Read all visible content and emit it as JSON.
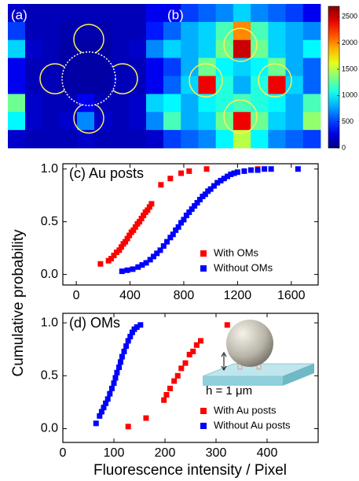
{
  "chart_data": [
    {
      "type": "heatmap",
      "title": "(a)",
      "values": [
        [
          200,
          150,
          150,
          150,
          150,
          150,
          150,
          150,
          300
        ],
        [
          500,
          150,
          150,
          120,
          120,
          120,
          150,
          150,
          400
        ],
        [
          900,
          200,
          150,
          100,
          100,
          100,
          150,
          200,
          700
        ],
        [
          300,
          150,
          150,
          100,
          100,
          100,
          150,
          150,
          300
        ],
        [
          300,
          150,
          150,
          100,
          100,
          100,
          150,
          150,
          300
        ],
        [
          1300,
          200,
          150,
          150,
          300,
          150,
          150,
          200,
          900
        ],
        [
          1000,
          200,
          150,
          200,
          700,
          200,
          150,
          200,
          700
        ],
        [
          200,
          150,
          150,
          150,
          200,
          150,
          150,
          150,
          200
        ]
      ],
      "clim": [
        0,
        2700
      ]
    },
    {
      "type": "heatmap",
      "title": "(b)",
      "values": [
        [
          300,
          500,
          600,
          700,
          900,
          700,
          600,
          500,
          300
        ],
        [
          600,
          800,
          900,
          1200,
          2000,
          1200,
          900,
          800,
          700
        ],
        [
          900,
          800,
          900,
          1300,
          2500,
          1300,
          900,
          800,
          1000
        ],
        [
          500,
          800,
          1300,
          1000,
          900,
          1000,
          1300,
          800,
          600
        ],
        [
          600,
          900,
          2400,
          1100,
          800,
          1100,
          2400,
          900,
          600
        ],
        [
          1000,
          800,
          1000,
          1100,
          1200,
          1100,
          1000,
          800,
          1200
        ],
        [
          1200,
          800,
          900,
          1300,
          2400,
          1300,
          900,
          800,
          1400
        ],
        [
          500,
          600,
          700,
          1000,
          1500,
          1000,
          700,
          600,
          500
        ]
      ],
      "clim": [
        0,
        2700
      ],
      "colorbar_ticks": [
        0,
        500,
        1000,
        1500,
        2000,
        2500
      ]
    },
    {
      "type": "scatter",
      "title": "(c) Au posts",
      "ylabel": "Cumulative probability",
      "legend": "lower right",
      "xlim": [
        -100,
        1800
      ],
      "xticks": [
        0,
        400,
        800,
        1200,
        1600
      ],
      "ylim": [
        -0.1,
        1.05
      ],
      "yticks": [
        {
          "value": 0,
          "label": "0.0"
        },
        {
          "value": 0.5,
          "label": "0.5"
        },
        {
          "value": 1,
          "label": "1.0"
        }
      ],
      "series": [
        {
          "name": "With OMs",
          "color": "#ff0000",
          "x": [
            180,
            240,
            260,
            280,
            300,
            320,
            335,
            350,
            365,
            380,
            395,
            410,
            425,
            440,
            455,
            470,
            485,
            500,
            515,
            530,
            545,
            560,
            630,
            700,
            780,
            840,
            970,
            1350
          ],
          "values": [
            0.1,
            0.13,
            0.15,
            0.18,
            0.21,
            0.23,
            0.26,
            0.29,
            0.31,
            0.34,
            0.37,
            0.4,
            0.42,
            0.45,
            0.48,
            0.5,
            0.53,
            0.56,
            0.59,
            0.61,
            0.64,
            0.67,
            0.85,
            0.91,
            0.96,
            0.98,
            1.0,
            1.0
          ]
        },
        {
          "name": "Without OMs",
          "color": "#0000ff",
          "x": [
            340,
            380,
            420,
            460,
            490,
            520,
            550,
            575,
            600,
            625,
            650,
            675,
            700,
            720,
            740,
            760,
            780,
            800,
            820,
            840,
            860,
            880,
            900,
            920,
            940,
            960,
            980,
            1000,
            1025,
            1050,
            1075,
            1100,
            1125,
            1150,
            1175,
            1200,
            1250,
            1300,
            1350,
            1400,
            1450,
            1650
          ],
          "values": [
            0.03,
            0.04,
            0.05,
            0.07,
            0.09,
            0.11,
            0.14,
            0.17,
            0.2,
            0.23,
            0.27,
            0.31,
            0.35,
            0.38,
            0.42,
            0.45,
            0.49,
            0.52,
            0.56,
            0.59,
            0.62,
            0.65,
            0.68,
            0.71,
            0.74,
            0.76,
            0.79,
            0.81,
            0.84,
            0.87,
            0.89,
            0.91,
            0.93,
            0.95,
            0.96,
            0.97,
            0.98,
            0.99,
            0.99,
            1.0,
            1.0,
            1.0
          ]
        }
      ]
    },
    {
      "type": "scatter",
      "title": "(d) OMs",
      "xlabel": "Fluorescence intensity / Pixel",
      "legend": "lower right",
      "annotation": "h = 1 μm",
      "xlim": [
        0,
        500
      ],
      "xticks": [
        0,
        100,
        200,
        300,
        400
      ],
      "ylim": [
        -0.13,
        1.09
      ],
      "yticks": [
        {
          "value": 0,
          "label": "0.0"
        },
        {
          "value": 0.5,
          "label": "0.5"
        },
        {
          "value": 1,
          "label": "1.0"
        }
      ],
      "series": [
        {
          "name": "With Au posts",
          "color": "#ff0000",
          "x": [
            128,
            163,
            198,
            203,
            210,
            218,
            225,
            232,
            240,
            248,
            255,
            262,
            270,
            322
          ],
          "values": [
            0.02,
            0.1,
            0.27,
            0.32,
            0.38,
            0.45,
            0.5,
            0.57,
            0.62,
            0.7,
            0.73,
            0.79,
            0.83,
            0.98
          ]
        },
        {
          "name": "Without Au posts",
          "color": "#0000ff",
          "x": [
            65,
            72,
            76,
            80,
            84,
            88,
            92,
            96,
            100,
            103,
            106,
            110,
            113,
            116,
            120,
            124,
            128,
            132,
            136,
            140,
            145,
            152
          ],
          "values": [
            0.05,
            0.12,
            0.16,
            0.2,
            0.24,
            0.28,
            0.33,
            0.38,
            0.43,
            0.48,
            0.53,
            0.58,
            0.63,
            0.68,
            0.73,
            0.78,
            0.83,
            0.87,
            0.91,
            0.94,
            0.96,
            0.98
          ]
        }
      ]
    }
  ]
}
